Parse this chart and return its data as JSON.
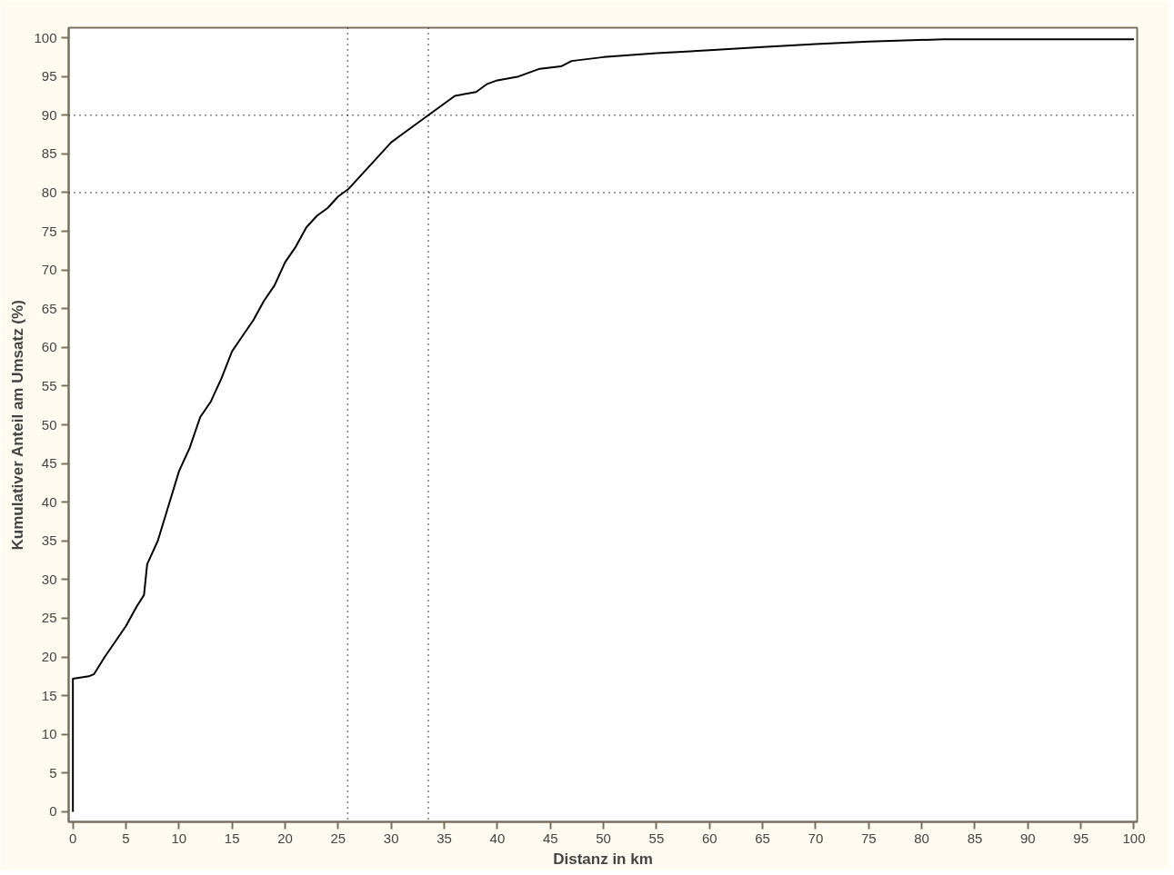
{
  "chart_data": {
    "type": "line",
    "xlabel": "Distanz in km",
    "ylabel": "Kumulativer Anteil am Umsatz (%)",
    "x": [
      0,
      0,
      1.5,
      2,
      3,
      4,
      5,
      6,
      6.7,
      7,
      8,
      9,
      10,
      11,
      12,
      13,
      14,
      15,
      16,
      17,
      18,
      19,
      20,
      21,
      22,
      23,
      24,
      25,
      26,
      27,
      28,
      29,
      30,
      31,
      32,
      33,
      34,
      35,
      36,
      38,
      39,
      40,
      42,
      44,
      46,
      47,
      50,
      55,
      60,
      65,
      70,
      75,
      82,
      100
    ],
    "series": [
      {
        "color": "#000000",
        "values": [
          0,
          17.2,
          17.5,
          17.8,
          20,
          22,
          24,
          26.5,
          28,
          32,
          35,
          39.5,
          44,
          47,
          51,
          53,
          56,
          59.5,
          61.5,
          63.5,
          66,
          68,
          71,
          73,
          75.5,
          77,
          78,
          79.5,
          80.5,
          82,
          83.5,
          85,
          86.5,
          87.5,
          88.5,
          89.5,
          90.5,
          91.5,
          92.5,
          93,
          94,
          94.5,
          95,
          96,
          96.3,
          97,
          97.5,
          98,
          98.4,
          98.8,
          99.2,
          99.5,
          99.8,
          99.8
        ]
      }
    ],
    "xlim": [
      -0.4,
      100.3
    ],
    "ylim": [
      -1.3,
      101.3
    ],
    "xticks": [
      0,
      5,
      10,
      15,
      20,
      25,
      30,
      35,
      40,
      45,
      50,
      55,
      60,
      65,
      70,
      75,
      80,
      85,
      90,
      95,
      100
    ],
    "yticks": [
      0,
      5,
      10,
      15,
      20,
      25,
      30,
      35,
      40,
      45,
      50,
      55,
      60,
      65,
      70,
      75,
      80,
      85,
      90,
      95,
      100
    ],
    "grid": false,
    "marker": "none",
    "line_style": "solid",
    "ref_lines": [
      {
        "axis": "x",
        "value": 25.9,
        "line_style": "dotted",
        "color": "#000000"
      },
      {
        "axis": "x",
        "value": 33.5,
        "line_style": "dotted",
        "color": "#000000"
      },
      {
        "axis": "y",
        "value": 80,
        "line_style": "dotted",
        "color": "#000000"
      },
      {
        "axis": "y",
        "value": 90,
        "line_style": "dotted",
        "color": "#000000"
      }
    ]
  }
}
